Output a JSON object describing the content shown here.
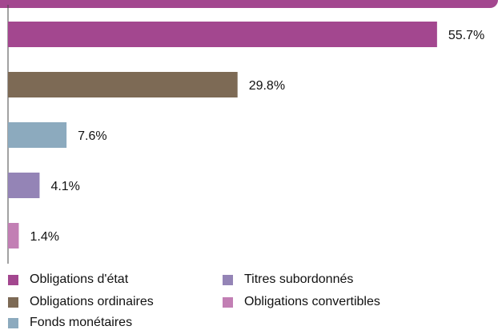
{
  "header": {
    "band_color": "#a3478f"
  },
  "chart_data": {
    "type": "bar",
    "orientation": "horizontal",
    "categories": [
      "Obligations d'état",
      "Obligations ordinaires",
      "Fonds monétaires",
      "Titres subordonnés",
      "Obligations convertibles"
    ],
    "values": [
      55.7,
      29.8,
      7.6,
      4.1,
      1.4
    ],
    "value_labels": [
      "55.7%",
      "29.8%",
      "7.6%",
      "4.1%",
      "1.4%"
    ],
    "colors": [
      "#a3478f",
      "#7d6a55",
      "#8caabe",
      "#9484b6",
      "#c27fb4"
    ],
    "value_unit": "%",
    "xlim": [
      0,
      58
    ],
    "grid": false,
    "legend_position": "bottom"
  },
  "legend": {
    "items": [
      {
        "label": "Obligations d'état",
        "color": "#a3478f"
      },
      {
        "label": "Titres subordonnés",
        "color": "#9484b6"
      },
      {
        "label": "Obligations ordinaires",
        "color": "#7d6a55"
      },
      {
        "label": "Obligations convertibles",
        "color": "#c27fb4"
      },
      {
        "label": "Fonds monétaires",
        "color": "#8caabe"
      }
    ]
  }
}
